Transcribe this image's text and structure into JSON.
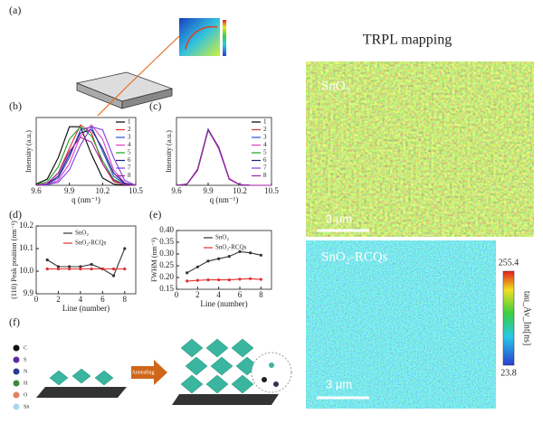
{
  "panel_a": {
    "label": "(a)"
  },
  "panel_f": {
    "label": "(f)",
    "arrow": "Annealing",
    "atoms": [
      "C",
      "S",
      "N",
      "H",
      "O",
      "Sn"
    ]
  },
  "mapping": {
    "title": "TRPL mapping",
    "top_label": "SnO₂",
    "bottom_label": "SnO₂-RCQs",
    "scale_top": "3 μm",
    "scale_bottom": "3 μm",
    "colorbar": {
      "max": 255.4,
      "min": 23.8,
      "label": "tau_Av_Int[ns]"
    }
  },
  "chart_data": [
    {
      "type": "line",
      "panel_label": "(b)",
      "x_label": "q (nm⁻¹)",
      "y_label": "Intensity (a.u.)",
      "x": [
        9.6,
        9.7,
        9.8,
        9.9,
        10.0,
        10.1,
        10.2,
        10.3,
        10.4,
        10.5
      ],
      "xlim": [
        9.6,
        10.5
      ],
      "xticks": [
        9.6,
        9.9,
        10.2,
        10.5
      ],
      "ylim": [
        0,
        1.1
      ],
      "legend": "right",
      "series": [
        {
          "name": "1",
          "color": "#000000",
          "values": [
            0.02,
            0.1,
            0.45,
            0.95,
            0.95,
            0.5,
            0.12,
            0.02,
            0,
            0
          ]
        },
        {
          "name": "2",
          "color": "#e03030",
          "values": [
            0,
            0.03,
            0.2,
            0.6,
            0.98,
            0.85,
            0.35,
            0.06,
            0.01,
            0
          ]
        },
        {
          "name": "3",
          "color": "#3050d0",
          "values": [
            0,
            0.02,
            0.12,
            0.45,
            0.9,
            0.95,
            0.55,
            0.15,
            0.02,
            0
          ]
        },
        {
          "name": "4",
          "color": "#e040c0",
          "values": [
            0,
            0.01,
            0.08,
            0.35,
            0.8,
            0.98,
            0.75,
            0.25,
            0.04,
            0
          ]
        },
        {
          "name": "5",
          "color": "#20a020",
          "values": [
            0.01,
            0.06,
            0.3,
            0.75,
            0.95,
            0.8,
            0.4,
            0.1,
            0.01,
            0
          ]
        },
        {
          "name": "6",
          "color": "#202080",
          "values": [
            0,
            0.02,
            0.15,
            0.5,
            0.85,
            0.9,
            0.6,
            0.2,
            0.03,
            0
          ]
        },
        {
          "name": "7",
          "color": "#8040e0",
          "values": [
            0,
            0.01,
            0.05,
            0.25,
            0.65,
            0.95,
            0.9,
            0.45,
            0.08,
            0
          ]
        },
        {
          "name": "8",
          "color": "#a020a0",
          "values": [
            0,
            0.03,
            0.2,
            0.55,
            0.78,
            0.7,
            0.35,
            0.08,
            0.01,
            0
          ]
        }
      ]
    },
    {
      "type": "line",
      "panel_label": "(c)",
      "x_label": "q (nm⁻¹)",
      "y_label": "Intensity (a.u.)",
      "x": [
        9.6,
        9.7,
        9.8,
        9.9,
        10.0,
        10.1,
        10.2,
        10.3,
        10.4,
        10.5
      ],
      "xlim": [
        9.6,
        10.5
      ],
      "xticks": [
        9.6,
        9.9,
        10.2,
        10.5
      ],
      "ylim": [
        0,
        1.1
      ],
      "legend": "right",
      "series": [
        {
          "name": "1",
          "color": "#000000",
          "values": [
            0,
            0.02,
            0.25,
            0.9,
            0.62,
            0.1,
            0.01,
            0,
            0,
            0
          ]
        },
        {
          "name": "2",
          "color": "#e03030",
          "values": [
            0,
            0.02,
            0.26,
            0.9,
            0.6,
            0.1,
            0.01,
            0,
            0,
            0
          ]
        },
        {
          "name": "3",
          "color": "#3050d0",
          "values": [
            0,
            0.02,
            0.25,
            0.91,
            0.61,
            0.1,
            0.01,
            0,
            0,
            0
          ]
        },
        {
          "name": "4",
          "color": "#e040c0",
          "values": [
            0,
            0.02,
            0.24,
            0.9,
            0.62,
            0.11,
            0.01,
            0,
            0,
            0
          ]
        },
        {
          "name": "5",
          "color": "#20a020",
          "values": [
            0,
            0.02,
            0.25,
            0.89,
            0.61,
            0.1,
            0.01,
            0,
            0,
            0
          ]
        },
        {
          "name": "6",
          "color": "#202080",
          "values": [
            0,
            0.02,
            0.26,
            0.91,
            0.6,
            0.1,
            0.01,
            0,
            0,
            0
          ]
        },
        {
          "name": "7",
          "color": "#8040e0",
          "values": [
            0,
            0.02,
            0.25,
            0.9,
            0.61,
            0.1,
            0.01,
            0,
            0,
            0
          ]
        },
        {
          "name": "8",
          "color": "#a020a0",
          "values": [
            0,
            0.02,
            0.25,
            0.9,
            0.62,
            0.1,
            0.01,
            0,
            0,
            0
          ]
        }
      ]
    },
    {
      "type": "line",
      "panel_label": "(d)",
      "markers": true,
      "x_label": "Line (number)",
      "y_label": "(110) Peak position (nm⁻¹)",
      "x": [
        1,
        2,
        3,
        4,
        5,
        6,
        7,
        8
      ],
      "xlim": [
        0,
        9
      ],
      "xticks": [
        0,
        2,
        4,
        6,
        8
      ],
      "ylim": [
        9.9,
        10.2
      ],
      "yticks": [
        9.9,
        {
          "value": 10,
          "label": "10.0"
        },
        10.1,
        10.2
      ],
      "legend": "top",
      "series": [
        {
          "name": "SnO₂",
          "color": "#333333",
          "values": [
            10.05,
            10.02,
            10.02,
            10.02,
            10.03,
            10.01,
            9.98,
            10.1
          ]
        },
        {
          "name": "SnO₂-RCQs",
          "color": "#e03030",
          "values": [
            10.01,
            10.01,
            10.01,
            10.01,
            10.01,
            10.01,
            10.01,
            10.01
          ]
        }
      ]
    },
    {
      "type": "line",
      "panel_label": "(e)",
      "markers": true,
      "x_label": "Line (number)",
      "y_label": "FWHM (nm⁻¹)",
      "x": [
        1,
        2,
        3,
        4,
        5,
        6,
        7,
        8
      ],
      "xlim": [
        0,
        9
      ],
      "xticks": [
        0,
        2,
        4,
        6,
        8
      ],
      "ylim": [
        0.15,
        0.4
      ],
      "yticks": [
        0.15,
        {
          "value": 0.2,
          "label": "0.20"
        },
        0.25,
        {
          "value": 0.3,
          "label": "0.30"
        },
        0.35,
        {
          "value": 0.4,
          "label": "0.40"
        }
      ],
      "legend": "top",
      "series": [
        {
          "name": "SnO₂",
          "color": "#333333",
          "values": [
            0.22,
            0.245,
            0.27,
            0.28,
            0.29,
            0.31,
            0.305,
            0.295
          ]
        },
        {
          "name": "SnO₂-RCQs",
          "color": "#e03030",
          "values": [
            0.185,
            0.188,
            0.19,
            0.19,
            0.19,
            0.193,
            0.195,
            0.192
          ]
        }
      ]
    }
  ]
}
